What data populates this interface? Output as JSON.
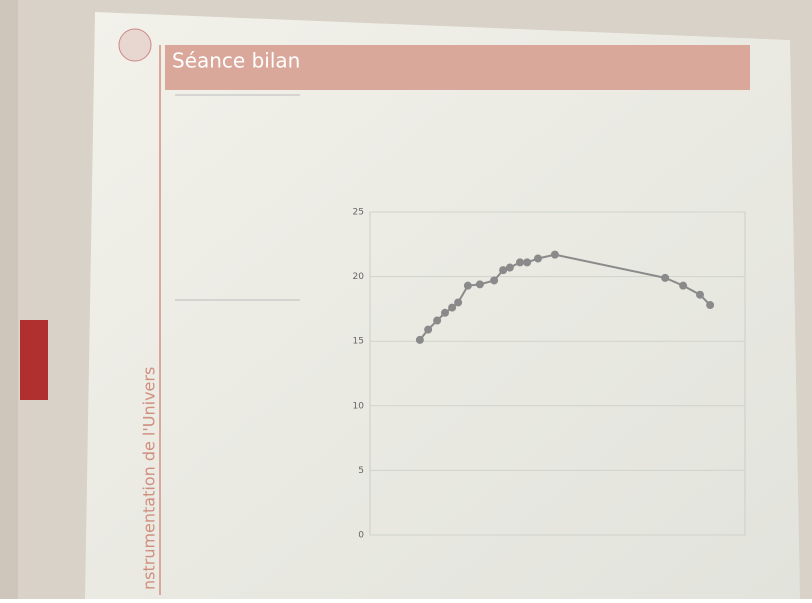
{
  "slide": {
    "title": "Séance bilan",
    "sidebar": "nstrumentation de l'Univers"
  },
  "chart_data": {
    "type": "line",
    "color": "#8a8a8a",
    "x": [
      1.33,
      1.55,
      1.79,
      2.0,
      2.19,
      2.35,
      2.61,
      2.93,
      3.31,
      3.55,
      3.73,
      4.0,
      4.19,
      4.48,
      4.93,
      7.87,
      8.35,
      8.8,
      9.07
    ],
    "values": [
      15.1,
      15.9,
      16.6,
      17.2,
      17.6,
      18.0,
      19.3,
      19.4,
      19.7,
      20.5,
      20.7,
      21.1,
      21.1,
      21.4,
      21.7,
      19.9,
      19.3,
      18.6,
      17.8
    ],
    "xlim": [
      0,
      10
    ],
    "ylim": [
      0,
      25
    ],
    "yticks": [
      0,
      5,
      10,
      15,
      20,
      25
    ],
    "grid": true
  }
}
